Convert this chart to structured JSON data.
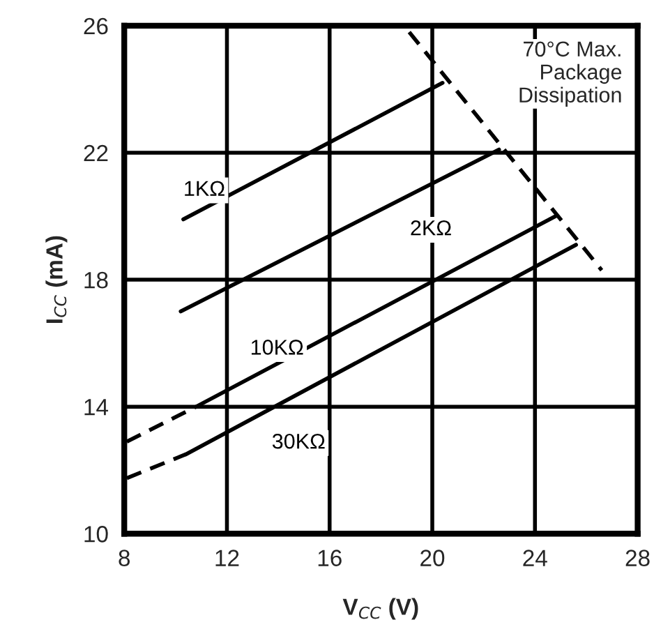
{
  "chart_data": {
    "type": "line",
    "xlabel": "V$_{CC}$ (V)",
    "ylabel": "I$_{CC}$ (mA)",
    "xlim": [
      8,
      28
    ],
    "xticks": [
      8,
      12,
      16,
      20,
      24,
      28
    ],
    "ylim": [
      10,
      26
    ],
    "yticks": [
      10,
      14,
      18,
      22,
      26
    ],
    "grid": true,
    "legend": false,
    "series": [
      {
        "name": "1KΩ",
        "color": "#000000",
        "x": [
          10.3,
          20.4
        ],
        "values": [
          19.9,
          24.2
        ],
        "line_style": "solid"
      },
      {
        "name": "2KΩ",
        "color": "#000000",
        "x": [
          10.2,
          22.6
        ],
        "values": [
          17.0,
          22.1
        ],
        "line_style": "solid"
      },
      {
        "name": "10KΩ",
        "color": "#000000",
        "x": [
          10.8,
          24.8
        ],
        "values": [
          14.0,
          20.0
        ],
        "line_style": "solid"
      },
      {
        "color": "#000000",
        "x": [
          8.1,
          10.8
        ],
        "values": [
          12.9,
          14.0
        ],
        "line_style": "dashed"
      },
      {
        "name": "30KΩ",
        "color": "#000000",
        "x": [
          10.4,
          25.6
        ],
        "values": [
          12.5,
          19.1
        ],
        "line_style": "solid"
      },
      {
        "color": "#000000",
        "x": [
          8.1,
          10.4
        ],
        "values": [
          11.75,
          12.5
        ],
        "line_style": "dashed"
      },
      {
        "color": "#000000",
        "x": [
          19.1,
          26.6
        ],
        "values": [
          25.8,
          18.3
        ],
        "line_style": "dashed"
      }
    ],
    "annotations": [
      "70°C Max.\nPackage\nDissipation"
    ]
  }
}
